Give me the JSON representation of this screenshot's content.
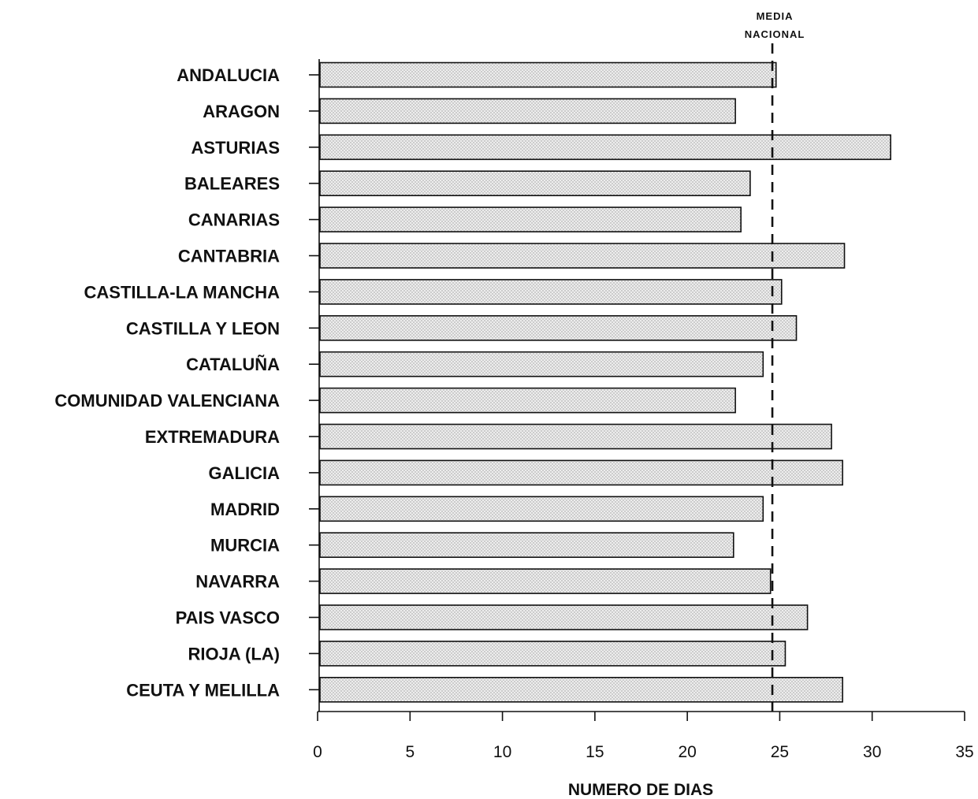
{
  "chart_data": {
    "type": "bar",
    "orientation": "horizontal",
    "categories": [
      "ANDALUCIA",
      "ARAGON",
      "ASTURIAS",
      "BALEARES",
      "CANARIAS",
      "CANTABRIA",
      "CASTILLA-LA MANCHA",
      "CASTILLA Y LEON",
      "CATALUÑA",
      "COMUNIDAD VALENCIANA",
      "EXTREMADURA",
      "GALICIA",
      "MADRID",
      "MURCIA",
      "NAVARRA",
      "PAIS VASCO",
      "RIOJA (LA)",
      "CEUTA Y MELILLA"
    ],
    "values": [
      24.8,
      22.6,
      31.0,
      23.4,
      22.9,
      28.5,
      25.1,
      25.9,
      24.1,
      22.6,
      27.8,
      28.4,
      24.1,
      22.5,
      24.5,
      26.5,
      25.3,
      28.4
    ],
    "xlabel": "NUMERO DE DIAS",
    "ylabel": "",
    "xlim": [
      0,
      35
    ],
    "xticks": [
      0,
      5,
      10,
      15,
      20,
      25,
      30,
      35
    ],
    "reference_line": {
      "value": 24.6,
      "label_line1": "MEDIA",
      "label_line2": "NACIONAL",
      "style": "dashed"
    },
    "bar_fill": "#e6e6e6",
    "bar_stroke": "#111111",
    "grid": false,
    "legend": "none"
  }
}
